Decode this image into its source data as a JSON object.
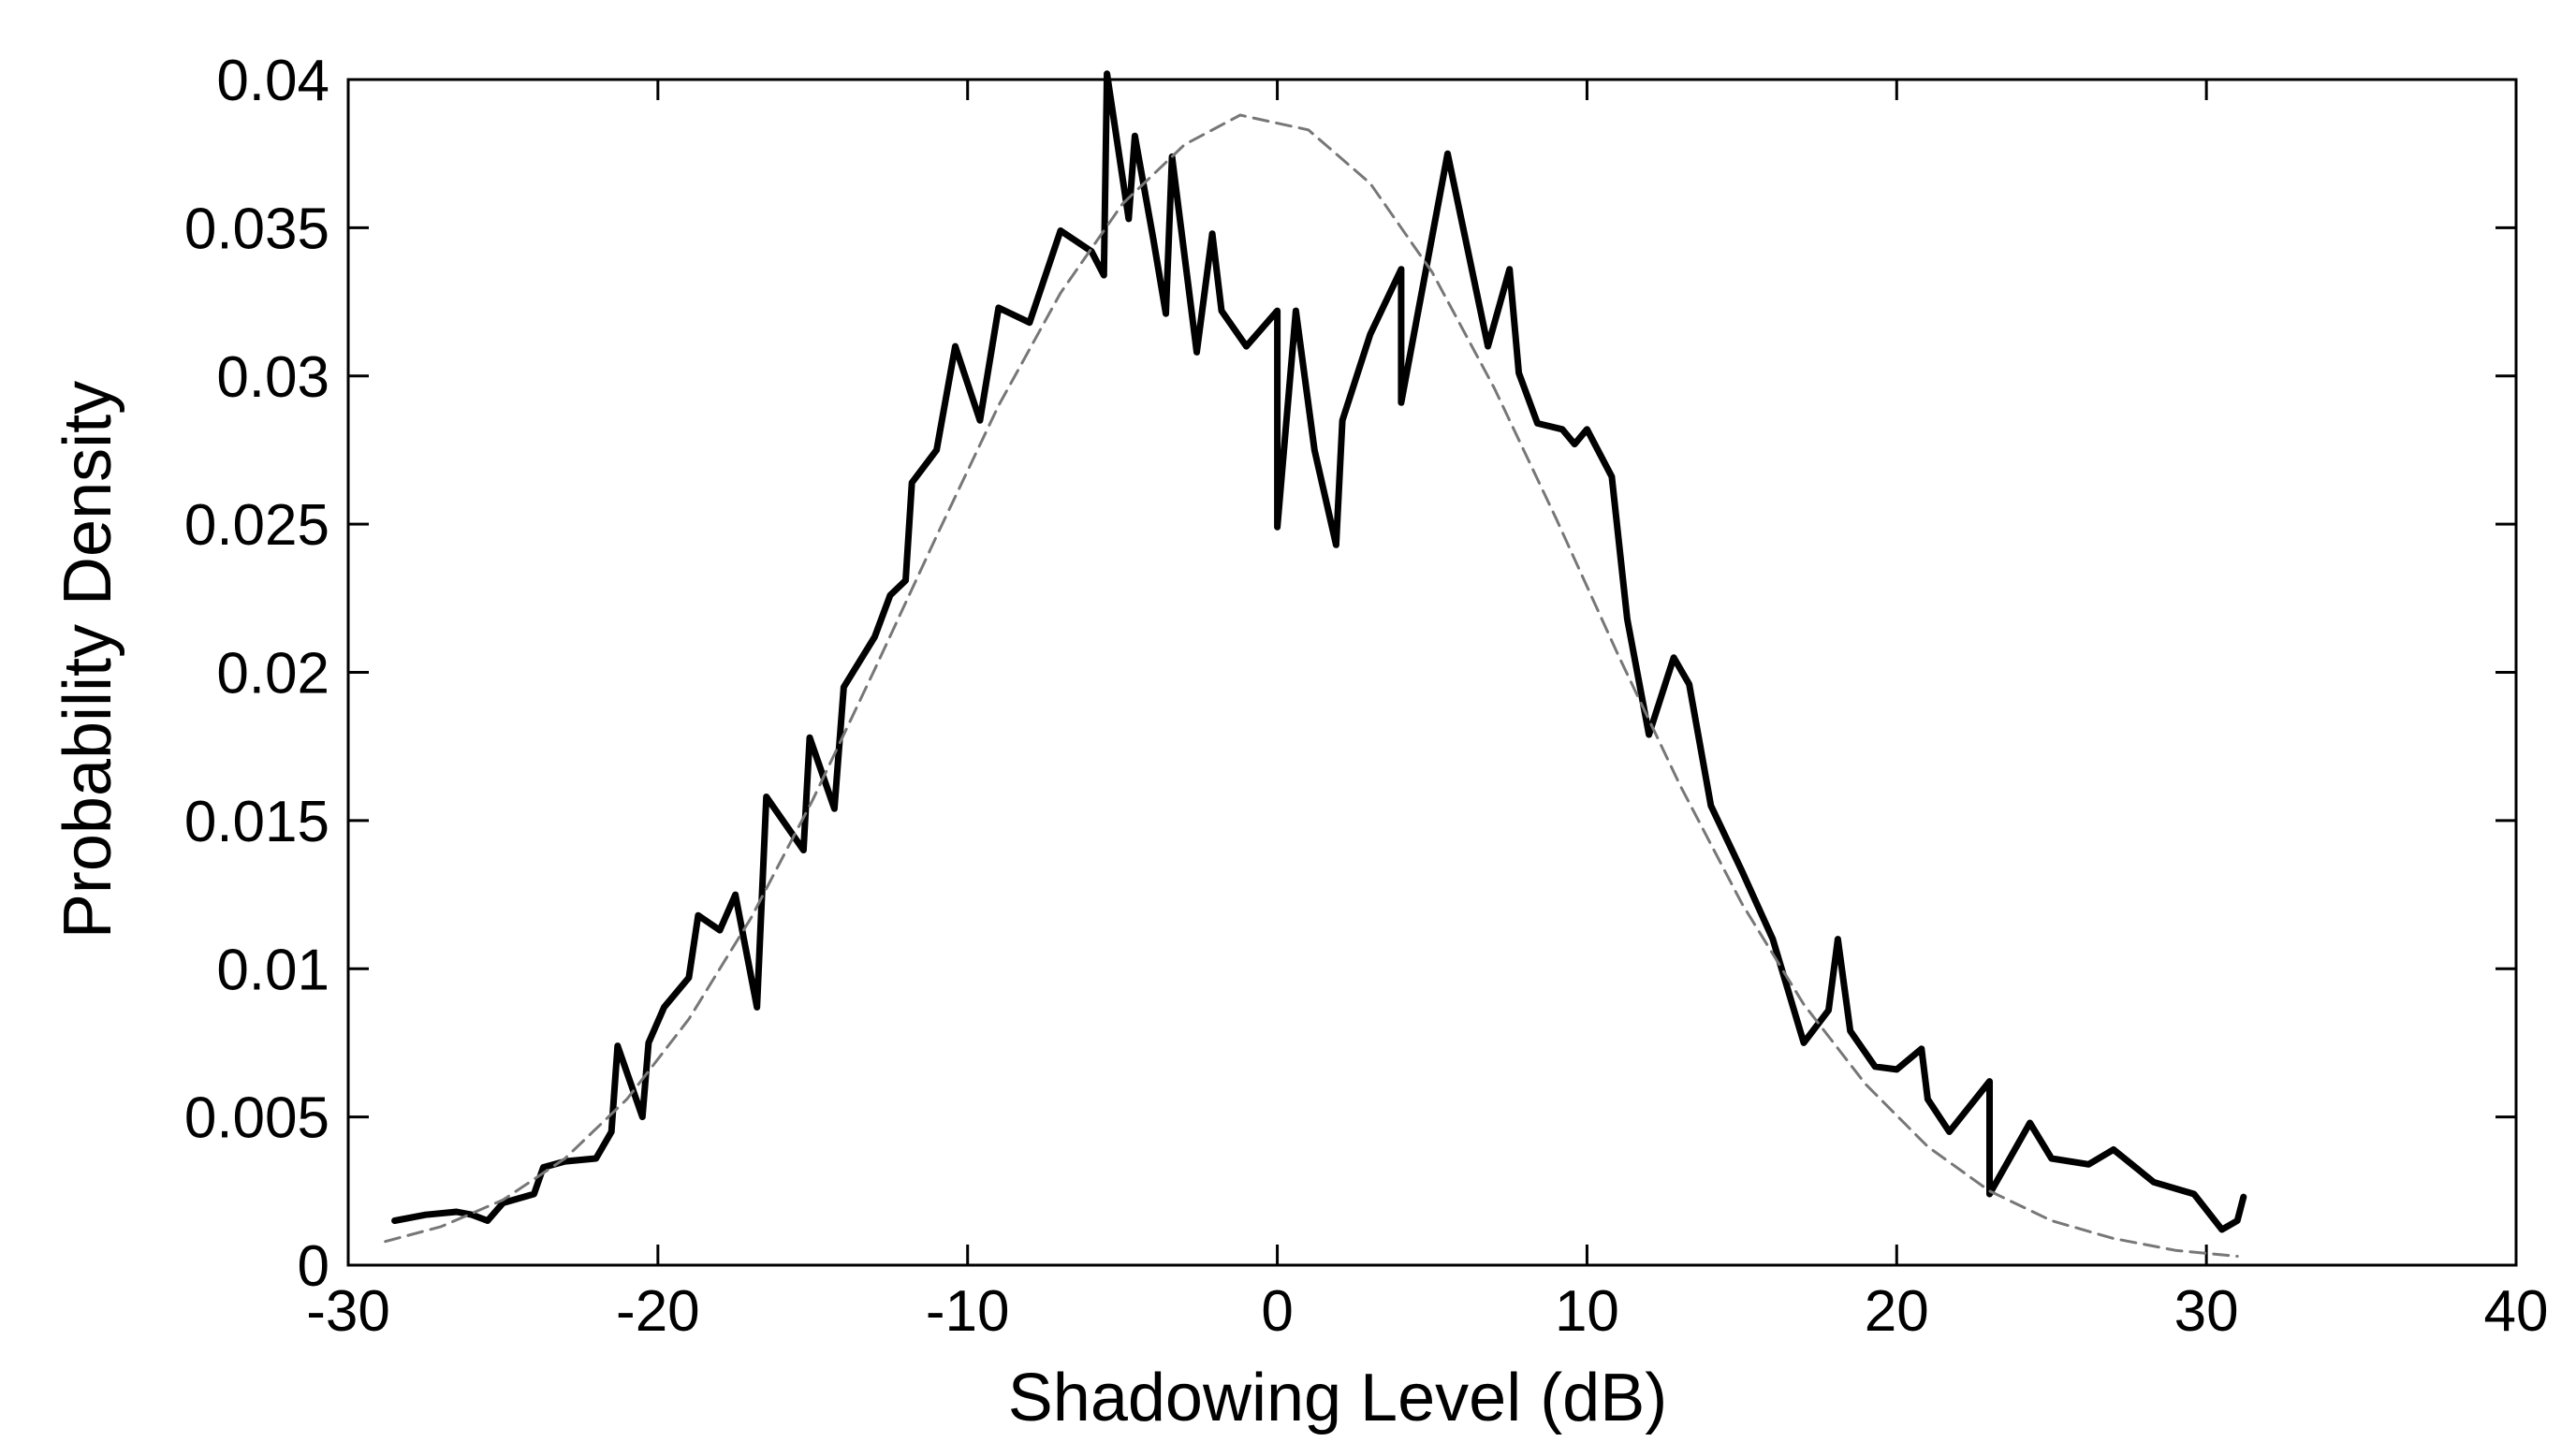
{
  "chart_data": {
    "type": "line",
    "xlabel": "Shadowing Level (dB)",
    "ylabel": "Probability Density",
    "xlim": [
      -30,
      40
    ],
    "ylim": [
      0,
      0.04
    ],
    "x_ticks": [
      -30,
      -20,
      -10,
      0,
      10,
      20,
      30,
      40
    ],
    "x_tick_labels": [
      "-30",
      "-20",
      "-10",
      "0",
      "10",
      "20",
      "30",
      "40"
    ],
    "y_ticks": [
      0,
      0.005,
      0.01,
      0.015,
      0.02,
      0.025,
      0.03,
      0.035,
      0.04
    ],
    "y_tick_labels": [
      "0",
      "0.005",
      "0.01",
      "0.015",
      "0.02",
      "0.025",
      "0.03",
      "0.035",
      "0.04"
    ],
    "grid": false,
    "legend": "none",
    "series": [
      {
        "style": "solid",
        "color": "#000000",
        "points": [
          [
            -28.5,
            0.0015
          ],
          [
            -27.5,
            0.0017
          ],
          [
            -26.5,
            0.0018
          ],
          [
            -26,
            0.0017
          ],
          [
            -25.5,
            0.0015
          ],
          [
            -25,
            0.0021
          ],
          [
            -24,
            0.0024
          ],
          [
            -23.7,
            0.0033
          ],
          [
            -23,
            0.0035
          ],
          [
            -22,
            0.0036
          ],
          [
            -21.5,
            0.0045
          ],
          [
            -21.3,
            0.0074
          ],
          [
            -20.5,
            0.005
          ],
          [
            -20.3,
            0.0075
          ],
          [
            -19.8,
            0.0087
          ],
          [
            -19,
            0.0097
          ],
          [
            -18.7,
            0.0118
          ],
          [
            -18,
            0.0113
          ],
          [
            -17.5,
            0.0125
          ],
          [
            -16.8,
            0.0087
          ],
          [
            -16.5,
            0.0158
          ],
          [
            -15.3,
            0.014
          ],
          [
            -15.1,
            0.0178
          ],
          [
            -14.3,
            0.0154
          ],
          [
            -14,
            0.0195
          ],
          [
            -13,
            0.0212
          ],
          [
            -12.5,
            0.0226
          ],
          [
            -12,
            0.0231
          ],
          [
            -11.8,
            0.0264
          ],
          [
            -11,
            0.0275
          ],
          [
            -10.4,
            0.031
          ],
          [
            -9.6,
            0.0285
          ],
          [
            -9,
            0.0323
          ],
          [
            -8,
            0.0318
          ],
          [
            -7,
            0.0349
          ],
          [
            -6,
            0.0342
          ],
          [
            -5.6,
            0.0334
          ],
          [
            -5.5,
            0.0402
          ],
          [
            -4.8,
            0.0353
          ],
          [
            -4.6,
            0.0381
          ],
          [
            -4,
            0.0346
          ],
          [
            -3.6,
            0.0321
          ],
          [
            -3.4,
            0.0374
          ],
          [
            -2.6,
            0.0308
          ],
          [
            -2.1,
            0.0348
          ],
          [
            -1.8,
            0.0322
          ],
          [
            -1,
            0.031
          ],
          [
            0,
            0.0322
          ],
          [
            0,
            0.0249
          ],
          [
            0.6,
            0.0322
          ],
          [
            1.2,
            0.0275
          ],
          [
            1.9,
            0.0243
          ],
          [
            2.1,
            0.0285
          ],
          [
            3,
            0.0314
          ],
          [
            4,
            0.0336
          ],
          [
            4,
            0.0291
          ],
          [
            5.5,
            0.0375
          ],
          [
            6.8,
            0.031
          ],
          [
            7.5,
            0.0336
          ],
          [
            7.8,
            0.0301
          ],
          [
            8.4,
            0.0284
          ],
          [
            9.2,
            0.0282
          ],
          [
            9.6,
            0.0277
          ],
          [
            10,
            0.0282
          ],
          [
            10.8,
            0.0266
          ],
          [
            11.3,
            0.0218
          ],
          [
            12,
            0.0179
          ],
          [
            12.8,
            0.0205
          ],
          [
            13.3,
            0.0196
          ],
          [
            14,
            0.0155
          ],
          [
            15,
            0.0133
          ],
          [
            16,
            0.011
          ],
          [
            17,
            0.0075
          ],
          [
            17.8,
            0.0086
          ],
          [
            18.1,
            0.011
          ],
          [
            18.5,
            0.0079
          ],
          [
            19.3,
            0.0067
          ],
          [
            20,
            0.0066
          ],
          [
            20.8,
            0.0073
          ],
          [
            21,
            0.0056
          ],
          [
            21.7,
            0.0045
          ],
          [
            23,
            0.0062
          ],
          [
            23,
            0.0024
          ],
          [
            24.3,
            0.0048
          ],
          [
            25,
            0.0036
          ],
          [
            26.2,
            0.0034
          ],
          [
            27,
            0.0039
          ],
          [
            28.3,
            0.0028
          ],
          [
            29.6,
            0.0024
          ],
          [
            30.5,
            0.0012
          ],
          [
            31,
            0.0015
          ],
          [
            31.2,
            0.0023
          ]
        ]
      },
      {
        "style": "dashed",
        "color": "#777777",
        "points": [
          [
            -28.8,
            0.0008
          ],
          [
            -27,
            0.0013
          ],
          [
            -25,
            0.0022
          ],
          [
            -23,
            0.0036
          ],
          [
            -21,
            0.0056
          ],
          [
            -19,
            0.0083
          ],
          [
            -17,
            0.0117
          ],
          [
            -15,
            0.0157
          ],
          [
            -13,
            0.0201
          ],
          [
            -11,
            0.0246
          ],
          [
            -9,
            0.029
          ],
          [
            -7,
            0.0328
          ],
          [
            -5,
            0.0358
          ],
          [
            -3,
            0.0378
          ],
          [
            -1.2,
            0.0388
          ],
          [
            1,
            0.0383
          ],
          [
            3,
            0.0365
          ],
          [
            5,
            0.0335
          ],
          [
            7,
            0.0296
          ],
          [
            9,
            0.0252
          ],
          [
            11,
            0.0206
          ],
          [
            13,
            0.0162
          ],
          [
            15,
            0.0122
          ],
          [
            17,
            0.0088
          ],
          [
            19,
            0.0061
          ],
          [
            21,
            0.004
          ],
          [
            23,
            0.0025
          ],
          [
            25,
            0.0015
          ],
          [
            27,
            0.0009
          ],
          [
            29,
            0.0005
          ],
          [
            31,
            0.0003
          ]
        ]
      }
    ]
  }
}
